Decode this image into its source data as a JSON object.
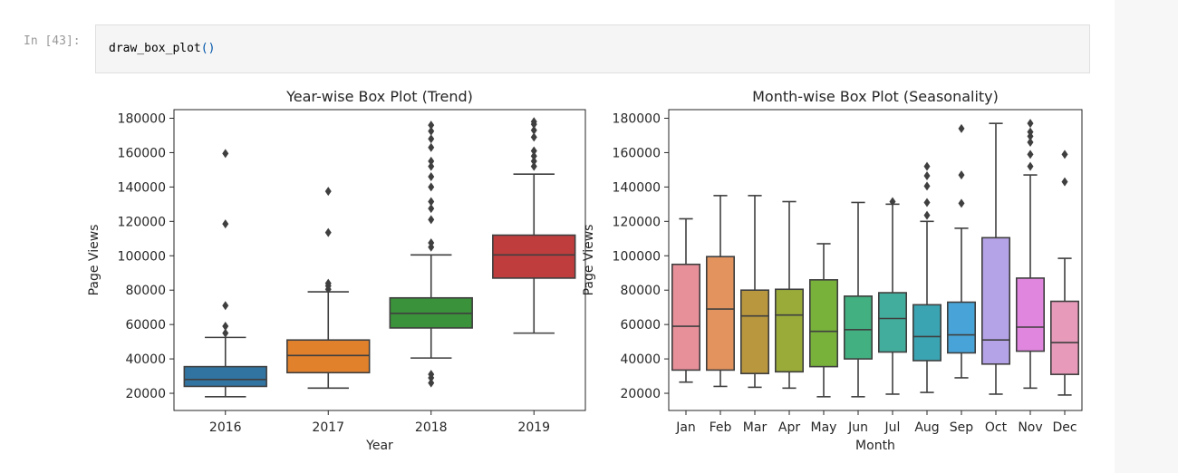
{
  "cell": {
    "prompt": "In [43]:",
    "code_fn": "draw_box_plot",
    "code_parens": "()"
  },
  "colors": {
    "year": [
      "#3274a1",
      "#e1812c",
      "#3a923a",
      "#c03d3e"
    ],
    "month": [
      "#e8909a",
      "#e2935e",
      "#b9973e",
      "#9aab39",
      "#78b23a",
      "#42b081",
      "#43ad9d",
      "#3aa4b2",
      "#48a4d8",
      "#b5a3e8",
      "#e086df",
      "#e89aba"
    ]
  },
  "chart_data": [
    {
      "type": "box",
      "title": "Year-wise Box Plot (Trend)",
      "xlabel": "Year",
      "ylabel": "Page Views",
      "ylim": [
        10000,
        185000
      ],
      "yticks": [
        20000,
        40000,
        60000,
        80000,
        100000,
        120000,
        140000,
        160000,
        180000
      ],
      "categories": [
        "2016",
        "2017",
        "2018",
        "2019"
      ],
      "boxes": [
        {
          "q1": 24000,
          "median": 28000,
          "q3": 35500,
          "whisker_low": 18000,
          "whisker_high": 52500,
          "outliers": [
            55000,
            59000,
            71000,
            118500,
            159500
          ]
        },
        {
          "q1": 32000,
          "median": 42000,
          "q3": 51000,
          "whisker_low": 23000,
          "whisker_high": 79000,
          "outliers": [
            80500,
            82500,
            84000,
            113500,
            137500
          ]
        },
        {
          "q1": 58000,
          "median": 66500,
          "q3": 75500,
          "whisker_low": 40500,
          "whisker_high": 100500,
          "outliers": [
            26000,
            29000,
            31000,
            105000,
            107500,
            121000,
            127500,
            131500,
            140000,
            146000,
            152000,
            155000,
            163000,
            168000,
            172500,
            176000
          ]
        },
        {
          "q1": 87000,
          "median": 100500,
          "q3": 112000,
          "whisker_low": 55000,
          "whisker_high": 147500,
          "outliers": [
            152000,
            155000,
            158000,
            161000,
            169000,
            173000,
            176500,
            178000
          ]
        }
      ]
    },
    {
      "type": "box",
      "title": "Month-wise Box Plot (Seasonality)",
      "xlabel": "Month",
      "ylabel": "Page Views",
      "ylim": [
        10000,
        185000
      ],
      "yticks": [
        20000,
        40000,
        60000,
        80000,
        100000,
        120000,
        140000,
        160000,
        180000
      ],
      "categories": [
        "Jan",
        "Feb",
        "Mar",
        "Apr",
        "May",
        "Jun",
        "Jul",
        "Aug",
        "Sep",
        "Oct",
        "Nov",
        "Dec"
      ],
      "boxes": [
        {
          "q1": 33500,
          "median": 59000,
          "q3": 95000,
          "whisker_low": 26500,
          "whisker_high": 121500,
          "outliers": []
        },
        {
          "q1": 33500,
          "median": 69000,
          "q3": 99500,
          "whisker_low": 24000,
          "whisker_high": 135000,
          "outliers": []
        },
        {
          "q1": 31500,
          "median": 65000,
          "q3": 80000,
          "whisker_low": 23500,
          "whisker_high": 135000,
          "outliers": []
        },
        {
          "q1": 32500,
          "median": 65500,
          "q3": 80500,
          "whisker_low": 23000,
          "whisker_high": 131500,
          "outliers": []
        },
        {
          "q1": 35500,
          "median": 56000,
          "q3": 86000,
          "whisker_low": 18000,
          "whisker_high": 107000,
          "outliers": []
        },
        {
          "q1": 40000,
          "median": 57000,
          "q3": 76500,
          "whisker_low": 18000,
          "whisker_high": 131000,
          "outliers": []
        },
        {
          "q1": 44000,
          "median": 63500,
          "q3": 78500,
          "whisker_low": 19500,
          "whisker_high": 130000,
          "outliers": [
            131500
          ]
        },
        {
          "q1": 39000,
          "median": 53000,
          "q3": 71500,
          "whisker_low": 20500,
          "whisker_high": 120000,
          "outliers": [
            123500,
            131000,
            140500,
            146500,
            152000
          ]
        },
        {
          "q1": 43500,
          "median": 54000,
          "q3": 73000,
          "whisker_low": 29000,
          "whisker_high": 116000,
          "outliers": [
            130500,
            147000,
            174000
          ]
        },
        {
          "q1": 37000,
          "median": 51000,
          "q3": 110500,
          "whisker_low": 19500,
          "whisker_high": 177000,
          "outliers": []
        },
        {
          "q1": 44500,
          "median": 58500,
          "q3": 87000,
          "whisker_low": 23000,
          "whisker_high": 147000,
          "outliers": [
            152000,
            159000,
            166000,
            169500,
            172000,
            177000
          ]
        },
        {
          "q1": 31000,
          "median": 49500,
          "q3": 73500,
          "whisker_low": 19000,
          "whisker_high": 98500,
          "outliers": [
            143000,
            159000
          ]
        }
      ]
    }
  ]
}
